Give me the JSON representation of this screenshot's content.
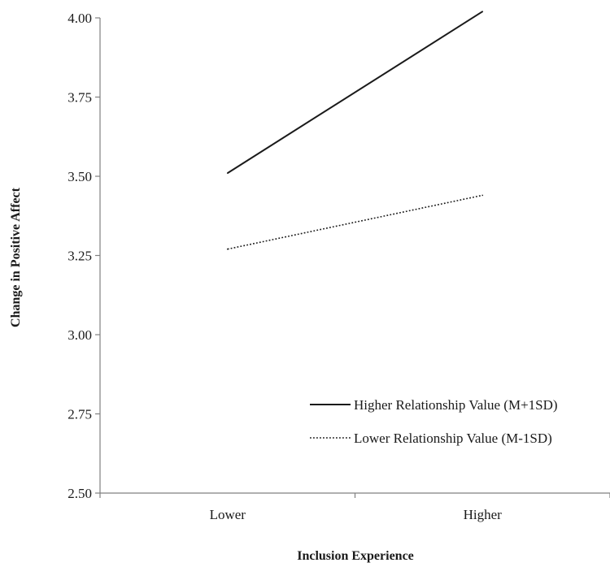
{
  "chart_data": {
    "type": "line",
    "title": "",
    "xlabel": "Inclusion Experience",
    "ylabel": "Change in Positive Affect",
    "categories": [
      "Lower",
      "Higher"
    ],
    "ylim": [
      2.5,
      4.0
    ],
    "yticks": [
      "2.50",
      "2.75",
      "3.00",
      "3.25",
      "3.50",
      "3.75",
      "4.00"
    ],
    "grid": false,
    "legend_position": "bottom-right",
    "series": [
      {
        "name": "Higher Relationship Value (M+1SD)",
        "values": [
          3.51,
          4.02
        ],
        "style": "solid",
        "color": "#1a1a1a"
      },
      {
        "name": "Lower Relationship Value (M-1SD)",
        "values": [
          3.27,
          3.44
        ],
        "style": "dotted",
        "color": "#1a1a1a"
      }
    ]
  }
}
